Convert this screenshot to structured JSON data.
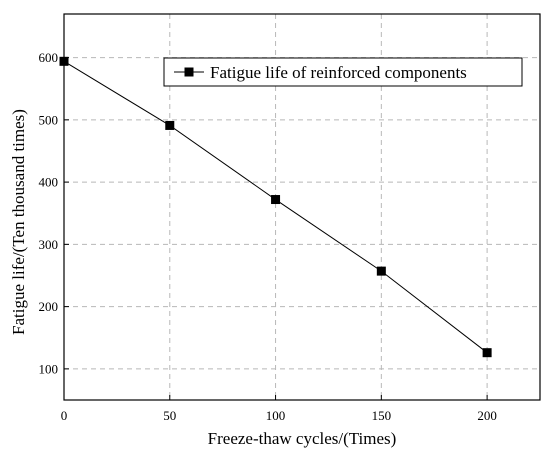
{
  "chart_data": {
    "type": "line",
    "xlabel": "Freeze-thaw cycles/(Times)",
    "ylabel": "Fatigue life/(Ten thousand times)",
    "xlim": [
      0,
      225
    ],
    "ylim": [
      50,
      670
    ],
    "xticks": [
      0,
      50,
      100,
      150,
      200
    ],
    "yticks": [
      100,
      200,
      300,
      400,
      500,
      600
    ],
    "grid": true,
    "legend_position": "top-right",
    "series": [
      {
        "name": "Fatigue life of reinforced components",
        "marker": "square",
        "color": "#000000",
        "x": [
          0,
          50,
          100,
          150,
          200
        ],
        "y": [
          594,
          491,
          372,
          257,
          126
        ]
      }
    ]
  }
}
